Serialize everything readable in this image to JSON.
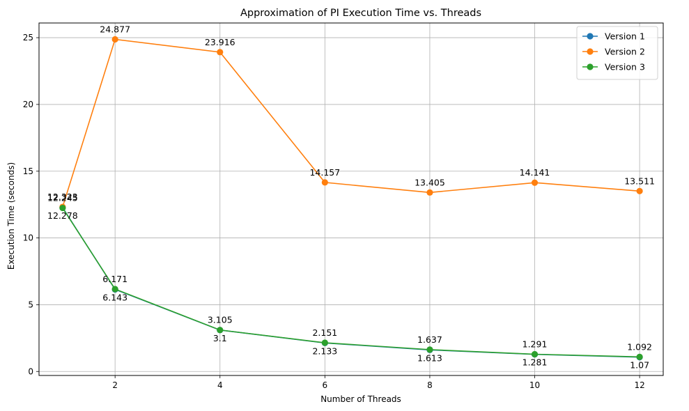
{
  "chart_data": {
    "type": "line",
    "title": "Approximation of PI Execution Time vs. Threads",
    "xlabel": "Number of Threads",
    "ylabel": "Execution Time (seconds)",
    "x": [
      1,
      2,
      4,
      6,
      8,
      10,
      12
    ],
    "xlim": [
      0.55,
      12.45
    ],
    "ylim": [
      -0.3,
      26.1
    ],
    "xticks": [
      2,
      4,
      6,
      8,
      10,
      12
    ],
    "yticks": [
      0,
      5,
      10,
      15,
      20,
      25
    ],
    "grid": true,
    "legend_position": "top-right",
    "series": [
      {
        "name": "Version 1",
        "color": "#1f77b4",
        "values": [
          12.278,
          6.143,
          3.1,
          2.133,
          1.613,
          1.281,
          1.07
        ],
        "labels": [
          "12.278",
          "6.143",
          "3.1",
          "2.133",
          "1.613",
          "1.281",
          "1.07"
        ],
        "label_position": "below"
      },
      {
        "name": "Version 2",
        "color": "#ff7f0e",
        "values": [
          12.323,
          24.877,
          23.916,
          14.157,
          13.405,
          14.141,
          13.511
        ],
        "labels": [
          "12.323",
          "24.877",
          "23.916",
          "14.157",
          "13.405",
          "14.141",
          "13.511"
        ],
        "label_position": "above"
      },
      {
        "name": "Version 3",
        "color": "#2ca02c",
        "values": [
          12.245,
          6.171,
          3.105,
          2.151,
          1.637,
          1.291,
          1.092
        ],
        "labels": [
          "12.245",
          "6.171",
          "3.105",
          "2.151",
          "1.637",
          "1.291",
          "1.092"
        ],
        "label_position": "above"
      }
    ]
  }
}
